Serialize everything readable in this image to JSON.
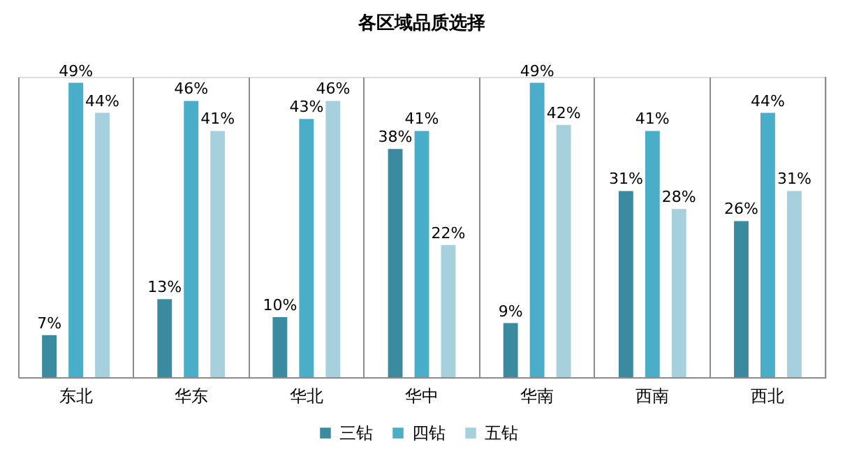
{
  "chart_data": {
    "type": "bar",
    "title": "各区域品质选择",
    "categories": [
      "东北",
      "华东",
      "华北",
      "华中",
      "华南",
      "西南",
      "西北"
    ],
    "series": [
      {
        "name": "三钻",
        "color": "#3a8ba0",
        "values": [
          7,
          13,
          10,
          38,
          9,
          31,
          26
        ],
        "value_labels": [
          "7%",
          "13%",
          "10%",
          "38%",
          "9%",
          "31%",
          "26%"
        ]
      },
      {
        "name": "四钻",
        "color": "#4aaec8",
        "values": [
          49,
          46,
          43,
          41,
          49,
          41,
          44
        ],
        "value_labels": [
          "49%",
          "46%",
          "43%",
          "41%",
          "49%",
          "41%",
          "44%"
        ]
      },
      {
        "name": "五钻",
        "color": "#a6d0dc",
        "values": [
          44,
          41,
          46,
          22,
          42,
          28,
          31
        ],
        "value_labels": [
          "44%",
          "41%",
          "46%",
          "22%",
          "42%",
          "28%",
          "31%"
        ]
      }
    ],
    "grid": "x",
    "legend": "bottom",
    "tick_labels": "x"
  }
}
